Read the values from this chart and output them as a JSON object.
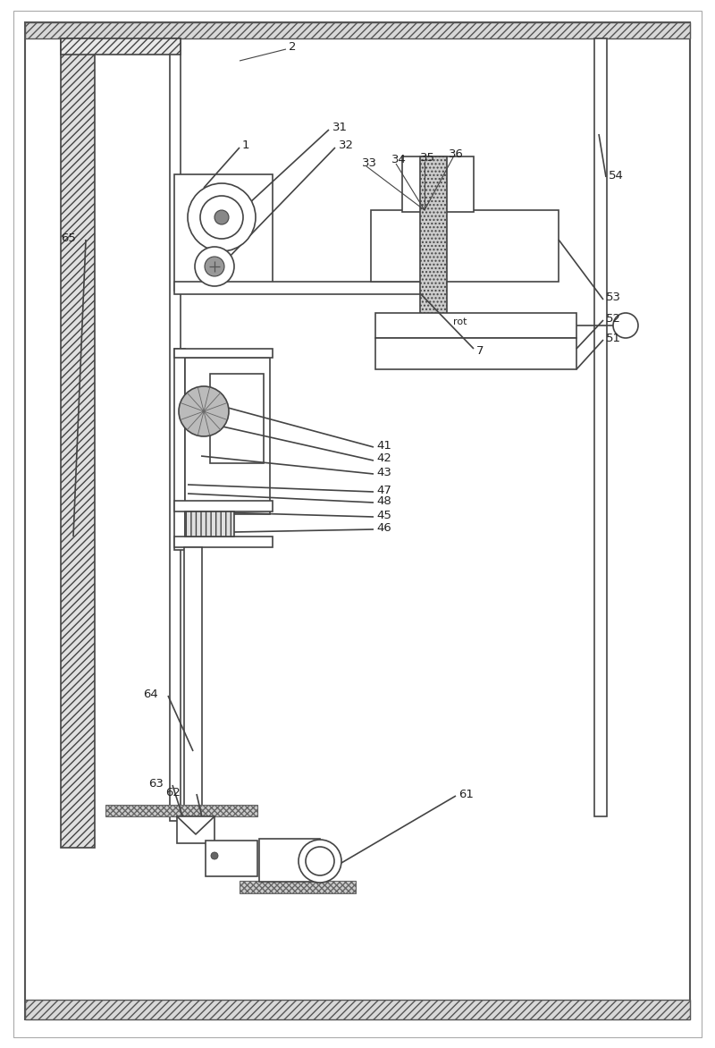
{
  "fig_width": 8.0,
  "fig_height": 11.72,
  "dpi": 100,
  "lc": "#444444",
  "bg": "white",
  "gray1": "#e0e0e0",
  "gray2": "#cccccc",
  "gray3": "#aaaaaa"
}
